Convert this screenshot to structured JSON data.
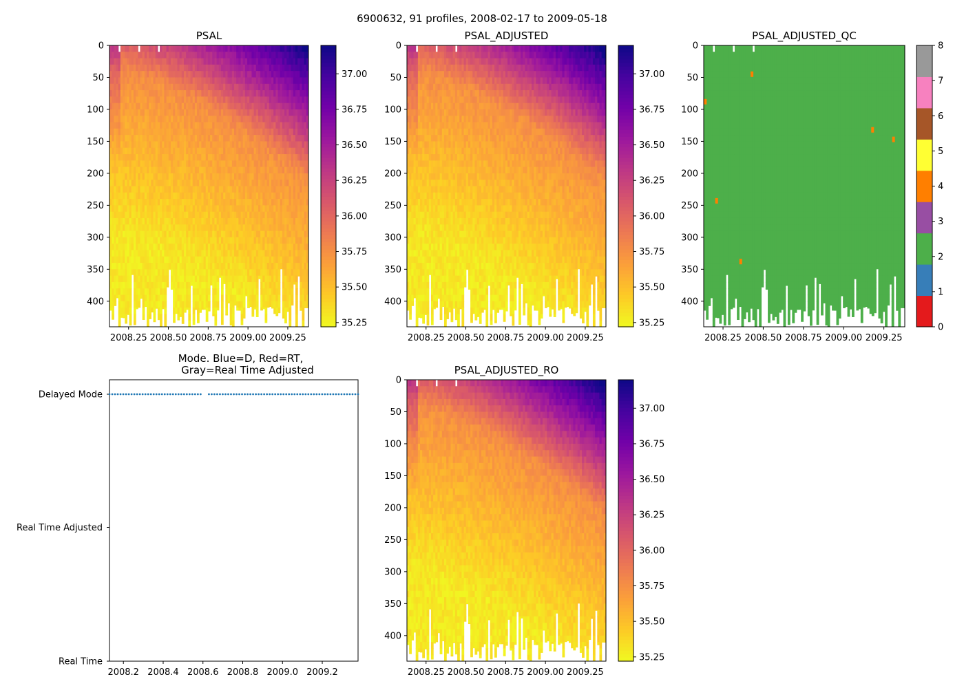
{
  "figure_title": "6900632, 91 profiles, 2008-02-17 to 2009-05-18",
  "colors": {
    "psal_colormap": [
      "#f0f921",
      "#fdca26",
      "#fb9f3a",
      "#ed7953",
      "#d8576b",
      "#bd3786",
      "#9c179e",
      "#7201a8",
      "#46039f",
      "#0d0887"
    ],
    "qc_colors": [
      "#e41a1c",
      "#377eb8",
      "#4daf4a",
      "#984ea3",
      "#ff7f00",
      "#ffff33",
      "#a65628",
      "#f781bf",
      "#999999"
    ],
    "mode_points": "#1f77b4",
    "axis": "#000000"
  },
  "chart_data": [
    {
      "id": "psal",
      "type": "heatmap",
      "title": "PSAL",
      "field": "salinity",
      "xlim": [
        2008.13,
        2009.38
      ],
      "ylim": [
        440,
        0
      ],
      "x_ticks": [
        "2008.25",
        "2008.50",
        "2008.75",
        "2009.00",
        "2009.25"
      ],
      "x_tick_values": [
        2008.25,
        2008.5,
        2008.75,
        2009.0,
        2009.25
      ],
      "y_ticks": [
        0,
        50,
        100,
        150,
        200,
        250,
        300,
        350,
        400
      ],
      "colorbar_range": [
        35.22,
        37.2
      ],
      "colorbar_ticks": [
        "35.25",
        "35.50",
        "35.75",
        "36.00",
        "36.25",
        "36.50",
        "36.75",
        "37.00"
      ],
      "colorbar_tick_values": [
        35.25,
        35.5,
        35.75,
        36.0,
        36.25,
        36.5,
        36.75,
        37.0
      ]
    },
    {
      "id": "psal_adjusted",
      "type": "heatmap",
      "title": "PSAL_ADJUSTED",
      "field": "salinity",
      "xlim": [
        2008.13,
        2009.38
      ],
      "ylim": [
        440,
        0
      ],
      "x_ticks": [
        "2008.25",
        "2008.50",
        "2008.75",
        "2009.00",
        "2009.25"
      ],
      "x_tick_values": [
        2008.25,
        2008.5,
        2008.75,
        2009.0,
        2009.25
      ],
      "y_ticks": [
        0,
        50,
        100,
        150,
        200,
        250,
        300,
        350,
        400
      ],
      "colorbar_range": [
        35.22,
        37.2
      ],
      "colorbar_ticks": [
        "35.25",
        "35.50",
        "35.75",
        "36.00",
        "36.25",
        "36.50",
        "36.75",
        "37.00"
      ],
      "colorbar_tick_values": [
        35.25,
        35.5,
        35.75,
        36.0,
        36.25,
        36.5,
        36.75,
        37.0
      ]
    },
    {
      "id": "psal_adjusted_qc",
      "type": "heatmap",
      "title": "PSAL_ADJUSTED_QC",
      "field": "qc",
      "xlim": [
        2008.13,
        2009.38
      ],
      "ylim": [
        440,
        0
      ],
      "x_ticks": [
        "2008.25",
        "2008.50",
        "2008.75",
        "2009.00",
        "2009.25"
      ],
      "x_tick_values": [
        2008.25,
        2008.5,
        2008.75,
        2009.0,
        2009.25
      ],
      "y_ticks": [
        0,
        50,
        100,
        150,
        200,
        250,
        300,
        350,
        400
      ],
      "colorbar_range": [
        0,
        8
      ],
      "colorbar_ticks": [
        "0",
        "1",
        "2",
        "3",
        "4",
        "5",
        "6",
        "7",
        "8"
      ],
      "colorbar_tick_values": [
        0,
        1,
        2,
        3,
        4,
        5,
        6,
        7,
        8
      ],
      "dominant_flag": 2,
      "flag4_cells": [
        {
          "x": 2008.14,
          "depth": 88
        },
        {
          "x": 2008.21,
          "depth": 243
        },
        {
          "x": 2008.36,
          "depth": 338
        },
        {
          "x": 2008.43,
          "depth": 45
        },
        {
          "x": 2009.18,
          "depth": 132
        },
        {
          "x": 2009.31,
          "depth": 147
        }
      ]
    },
    {
      "id": "mode",
      "type": "scatter",
      "title": "Mode. Blue=D, Red=RT,",
      "title_line2": "Gray=Real Time Adjusted",
      "xlim": [
        2008.13,
        2009.38
      ],
      "x_ticks": [
        "2008.2",
        "2008.4",
        "2008.6",
        "2008.8",
        "2009.0",
        "2009.2"
      ],
      "x_tick_values": [
        2008.2,
        2008.4,
        2008.6,
        2008.8,
        2009.0,
        2009.2
      ],
      "y_categories": [
        "Real Time",
        "Real Time Adjusted",
        "Delayed Mode"
      ],
      "profile_count": 91,
      "start": 2008.13,
      "end": 2009.38,
      "gap": [
        2008.6,
        2008.63
      ],
      "value": "Delayed Mode"
    },
    {
      "id": "psal_adjusted_ro",
      "type": "heatmap",
      "title": "PSAL_ADJUSTED_RO",
      "field": "salinity",
      "xlim": [
        2008.13,
        2009.38
      ],
      "ylim": [
        440,
        0
      ],
      "x_ticks": [
        "2008.25",
        "2008.50",
        "2008.75",
        "2009.00",
        "2009.25"
      ],
      "x_tick_values": [
        2008.25,
        2008.5,
        2008.75,
        2009.0,
        2009.25
      ],
      "y_ticks": [
        0,
        50,
        100,
        150,
        200,
        250,
        300,
        350,
        400
      ],
      "colorbar_range": [
        35.22,
        37.2
      ],
      "colorbar_ticks": [
        "35.25",
        "35.50",
        "35.75",
        "36.00",
        "36.25",
        "36.50",
        "36.75",
        "37.00"
      ],
      "colorbar_tick_values": [
        35.25,
        35.5,
        35.75,
        36.0,
        36.25,
        36.5,
        36.75,
        37.0
      ]
    }
  ]
}
